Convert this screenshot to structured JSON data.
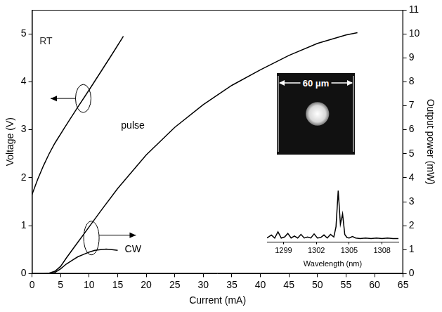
{
  "chart_data": [
    {
      "type": "line",
      "annotations": [
        "RT"
      ],
      "x_label": "Current (mA)",
      "y_label": "Voltage (V)",
      "y2_label": "Output power (mW)",
      "xlim": [
        0,
        65
      ],
      "xticks": [
        0,
        5,
        10,
        15,
        20,
        25,
        30,
        35,
        40,
        45,
        50,
        55,
        60,
        65
      ],
      "ylim": [
        0,
        5.5
      ],
      "yticks": [
        0,
        1,
        2,
        3,
        4,
        5
      ],
      "y2lim": [
        0,
        11
      ],
      "y2ticks": [
        0,
        1,
        2,
        3,
        4,
        5,
        6,
        7,
        8,
        9,
        10,
        11
      ],
      "grid": false,
      "series": [
        {
          "color": "#000000",
          "axis": "y",
          "x": [
            0,
            1,
            2,
            3,
            4,
            6,
            8,
            10,
            12,
            14,
            16
          ],
          "values": [
            1.65,
            1.97,
            2.25,
            2.5,
            2.72,
            3.1,
            3.47,
            3.83,
            4.2,
            4.57,
            4.95
          ]
        },
        {
          "name": "pulse",
          "color": "#000000",
          "axis": "y2",
          "x": [
            0,
            2,
            3,
            4,
            5,
            6,
            8,
            10,
            12,
            15,
            20,
            25,
            30,
            35,
            40,
            45,
            50,
            55,
            57
          ],
          "values": [
            0,
            0,
            0.02,
            0.1,
            0.3,
            0.65,
            1.3,
            1.95,
            2.6,
            3.55,
            4.95,
            6.1,
            7.05,
            7.85,
            8.5,
            9.1,
            9.6,
            9.95,
            10.05
          ]
        },
        {
          "name": "CW",
          "color": "#000000",
          "axis": "y2",
          "x": [
            0,
            3,
            4,
            5,
            6,
            7,
            8,
            9,
            10,
            11,
            12,
            13,
            14,
            15
          ],
          "values": [
            0,
            0,
            0.05,
            0.2,
            0.4,
            0.55,
            0.7,
            0.8,
            0.9,
            0.97,
            1.0,
            1.02,
            1.0,
            0.97
          ]
        }
      ]
    },
    {
      "type": "line",
      "x_label": "Wavelength (nm)",
      "xlim": [
        1297.5,
        1309.5
      ],
      "xticks": [
        1299,
        1302,
        1305,
        1308
      ],
      "ylim": [
        0,
        1.1
      ],
      "tick_labels": "x",
      "grid": false,
      "series": [
        {
          "color": "#000000",
          "x": [
            1297.5,
            1297.9,
            1298.2,
            1298.5,
            1298.8,
            1299.1,
            1299.4,
            1299.7,
            1300.0,
            1300.3,
            1300.6,
            1300.9,
            1301.2,
            1301.5,
            1301.8,
            1302.1,
            1302.4,
            1302.7,
            1303.0,
            1303.3,
            1303.6,
            1303.8,
            1304.0,
            1304.2,
            1304.4,
            1304.6,
            1304.8,
            1305.0,
            1305.3,
            1305.6,
            1306.0,
            1306.5,
            1307.0,
            1307.5,
            1308.0,
            1308.5,
            1309.0,
            1309.5
          ],
          "values": [
            0.08,
            0.14,
            0.08,
            0.2,
            0.08,
            0.1,
            0.17,
            0.08,
            0.12,
            0.08,
            0.15,
            0.08,
            0.1,
            0.08,
            0.16,
            0.08,
            0.09,
            0.14,
            0.08,
            0.15,
            0.1,
            0.3,
            1.0,
            0.35,
            0.55,
            0.15,
            0.09,
            0.08,
            0.11,
            0.08,
            0.07,
            0.08,
            0.07,
            0.08,
            0.07,
            0.08,
            0.07,
            0.07
          ]
        }
      ]
    }
  ],
  "image_inset": {
    "scale_label": "60 μm"
  }
}
